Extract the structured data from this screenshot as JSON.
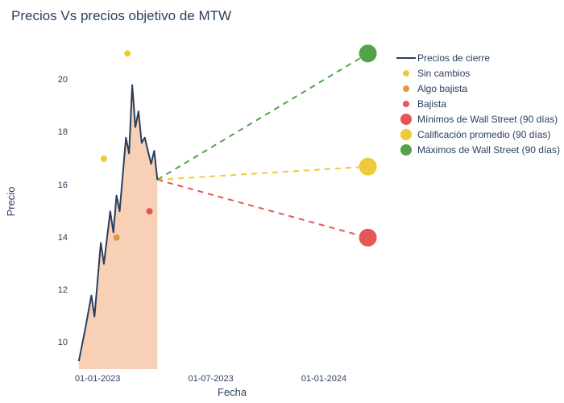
{
  "title": "Precios Vs precios objetivo de MTW",
  "xlabel": "Fecha",
  "ylabel": "Precio",
  "background_color": "#ffffff",
  "text_color": "#2a3f5f",
  "title_fontsize": 17,
  "label_fontsize": 13,
  "tick_fontsize": 11,
  "y_axis": {
    "min": 9,
    "max": 21.5,
    "ticks": [
      10,
      12,
      14,
      16,
      18,
      20
    ]
  },
  "x_axis": {
    "ticks": [
      {
        "label": "01-01-2023",
        "t": 0.08
      },
      {
        "label": "01-07-2023",
        "t": 0.44
      },
      {
        "label": "01-01-2024",
        "t": 0.8
      }
    ]
  },
  "closing_line": {
    "color": "#2a3f5f",
    "stroke_width": 2,
    "fill_color": "#f4b183",
    "fill_opacity": 0.6,
    "points": [
      {
        "t": 0.02,
        "y": 9.3
      },
      {
        "t": 0.04,
        "y": 10.5
      },
      {
        "t": 0.06,
        "y": 11.8
      },
      {
        "t": 0.07,
        "y": 11.0
      },
      {
        "t": 0.09,
        "y": 13.8
      },
      {
        "t": 0.1,
        "y": 13.0
      },
      {
        "t": 0.12,
        "y": 15.0
      },
      {
        "t": 0.13,
        "y": 14.2
      },
      {
        "t": 0.14,
        "y": 15.6
      },
      {
        "t": 0.15,
        "y": 15.0
      },
      {
        "t": 0.17,
        "y": 17.8
      },
      {
        "t": 0.18,
        "y": 17.2
      },
      {
        "t": 0.19,
        "y": 19.8
      },
      {
        "t": 0.2,
        "y": 18.2
      },
      {
        "t": 0.21,
        "y": 18.8
      },
      {
        "t": 0.22,
        "y": 17.6
      },
      {
        "t": 0.23,
        "y": 17.8
      },
      {
        "t": 0.25,
        "y": 16.8
      },
      {
        "t": 0.26,
        "y": 17.3
      },
      {
        "t": 0.27,
        "y": 16.2
      }
    ]
  },
  "fan_origin": {
    "t": 0.27,
    "y": 16.2
  },
  "targets": [
    {
      "key": "min",
      "label": "Mínimos de Wall Street (90 días)",
      "t": 0.94,
      "y": 14.0,
      "color": "#e45756",
      "dot_r": 11,
      "dash": "7,6",
      "stroke_width": 2
    },
    {
      "key": "avg",
      "label": "Calificación promedio (90 días)",
      "t": 0.94,
      "y": 16.7,
      "color": "#eeca3b",
      "dot_r": 11,
      "dash": "7,6",
      "stroke_width": 2
    },
    {
      "key": "max",
      "label": "Máximos de Wall Street (90 días)",
      "t": 0.94,
      "y": 21.0,
      "color": "#54a24b",
      "dot_r": 11,
      "dash": "7,6",
      "stroke_width": 2
    }
  ],
  "rating_dots": [
    {
      "key": "sin_cambios",
      "label": "Sin cambios",
      "t": 0.175,
      "y": 21.0,
      "color": "#eeca3b",
      "r": 4
    },
    {
      "key": "sin_cambios2",
      "t": 0.1,
      "y": 17.0,
      "color": "#eeca3b",
      "r": 4
    },
    {
      "key": "algo_bajista",
      "label": "Algo bajista",
      "t": 0.14,
      "y": 14.0,
      "color": "#e3964a",
      "r": 4
    },
    {
      "key": "bajista",
      "label": "Bajista",
      "t": 0.245,
      "y": 15.0,
      "color": "#e45756",
      "r": 4
    }
  ],
  "legend": [
    {
      "type": "line",
      "label": "Precios de cierre",
      "color": "#2a3f5f"
    },
    {
      "type": "dot",
      "label": "Sin cambios",
      "color": "#eeca3b",
      "r": 4
    },
    {
      "type": "dot",
      "label": "Algo bajista",
      "color": "#e3964a",
      "r": 4
    },
    {
      "type": "dot",
      "label": "Bajista",
      "color": "#e45756",
      "r": 4
    },
    {
      "type": "dot",
      "label": "Mínimos de Wall Street (90 días)",
      "color": "#e45756",
      "r": 7
    },
    {
      "type": "dot",
      "label": "Calificación promedio (90 días)",
      "color": "#eeca3b",
      "r": 7
    },
    {
      "type": "dot",
      "label": "Máximos de Wall Street (90 días)",
      "color": "#54a24b",
      "r": 7
    }
  ]
}
